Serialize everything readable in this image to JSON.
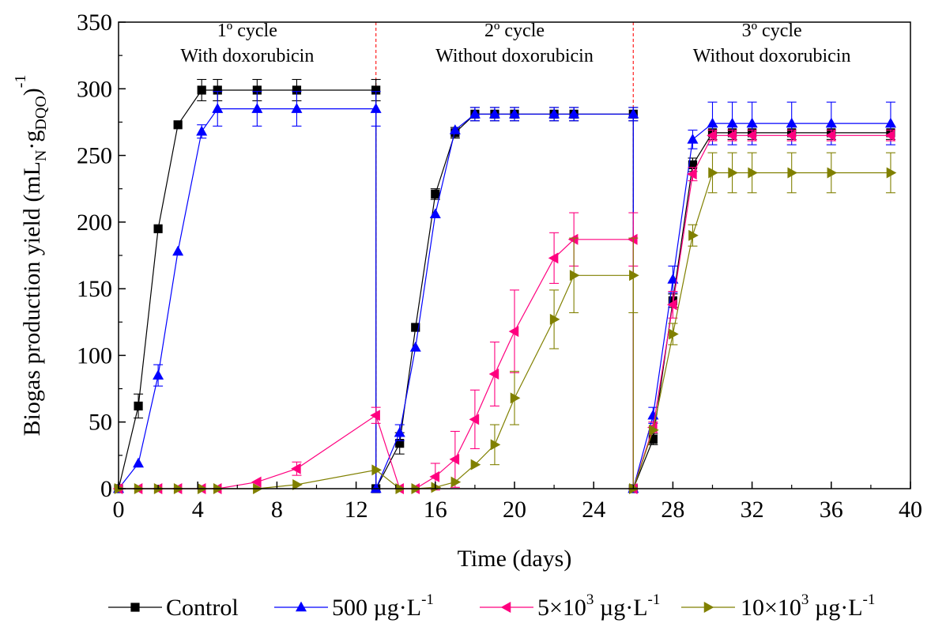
{
  "chart_data": {
    "type": "line",
    "xlabel": "Time (days)",
    "ylabel_main": "Biogas production yield (mL",
    "ylabel_sub_n": "N",
    "ylabel_dot": "·g",
    "ylabel_sub_dqo": "DQO",
    "ylabel_close": ")",
    "ylabel_sup": "-1",
    "xlim": [
      0,
      40
    ],
    "ylim": [
      0,
      350
    ],
    "xticks": [
      0,
      4,
      8,
      12,
      16,
      20,
      24,
      28,
      32,
      36,
      40
    ],
    "yticks": [
      0,
      50,
      100,
      150,
      200,
      250,
      300,
      350
    ],
    "cycle_dividers": [
      13,
      26
    ],
    "cycle_labels": [
      {
        "line1": "1º cycle",
        "line2": "With doxorubicin",
        "x": 6.5
      },
      {
        "line1": "2º cycle",
        "line2": "Without doxorubicin",
        "x": 20.0
      },
      {
        "line1": "3º cycle",
        "line2": "Without doxorubicin",
        "x": 33.0
      }
    ],
    "series": [
      {
        "name": "Control",
        "color": "#000000",
        "marker": "square",
        "points": [
          [
            0,
            0
          ],
          [
            1,
            62
          ],
          [
            2,
            195
          ],
          [
            3,
            273
          ],
          [
            4.2,
            299
          ],
          [
            5,
            299
          ],
          [
            7,
            299
          ],
          [
            9,
            299
          ],
          [
            13,
            299
          ],
          [
            13,
            0
          ],
          [
            14.2,
            34
          ],
          [
            15,
            121
          ],
          [
            16,
            221
          ],
          [
            17,
            267
          ],
          [
            18,
            281
          ],
          [
            19,
            281
          ],
          [
            20,
            281
          ],
          [
            22,
            281
          ],
          [
            23,
            281
          ],
          [
            26,
            281
          ],
          [
            26,
            0
          ],
          [
            27,
            37
          ],
          [
            28,
            141
          ],
          [
            29,
            243
          ],
          [
            30,
            267
          ],
          [
            31,
            267
          ],
          [
            32,
            267
          ],
          [
            34,
            267
          ],
          [
            36,
            267
          ],
          [
            39,
            267
          ]
        ],
        "errors": [
          [
            0,
            0
          ],
          [
            1,
            9
          ],
          [
            2,
            0
          ],
          [
            3,
            0
          ],
          [
            4.2,
            8
          ],
          [
            5,
            8
          ],
          [
            7,
            8
          ],
          [
            9,
            8
          ],
          [
            13,
            8
          ],
          [
            13,
            0
          ],
          [
            14.2,
            8
          ],
          [
            15,
            0
          ],
          [
            16,
            4
          ],
          [
            17,
            4
          ],
          [
            18,
            5
          ],
          [
            19,
            5
          ],
          [
            20,
            5
          ],
          [
            22,
            5
          ],
          [
            23,
            5
          ],
          [
            26,
            5
          ],
          [
            26,
            0
          ],
          [
            27,
            4
          ],
          [
            28,
            5
          ],
          [
            29,
            5
          ],
          [
            30,
            5
          ],
          [
            31,
            5
          ],
          [
            32,
            5
          ],
          [
            34,
            5
          ],
          [
            36,
            5
          ],
          [
            39,
            5
          ]
        ]
      },
      {
        "name": "500 µg·L",
        "name_sup": "-1",
        "color": "#0000ff",
        "marker": "triangle-up",
        "points": [
          [
            0,
            0
          ],
          [
            1,
            19
          ],
          [
            2,
            85
          ],
          [
            3,
            178
          ],
          [
            4.2,
            268
          ],
          [
            5,
            285
          ],
          [
            7,
            285
          ],
          [
            9,
            285
          ],
          [
            13,
            285
          ],
          [
            13,
            0
          ],
          [
            14.2,
            42
          ],
          [
            15,
            106
          ],
          [
            16,
            206
          ],
          [
            17,
            269
          ],
          [
            18,
            281
          ],
          [
            19,
            281
          ],
          [
            20,
            281
          ],
          [
            22,
            281
          ],
          [
            23,
            281
          ],
          [
            26,
            281
          ],
          [
            26,
            0
          ],
          [
            27,
            55
          ],
          [
            28,
            157
          ],
          [
            29,
            262
          ],
          [
            30,
            274
          ],
          [
            31,
            274
          ],
          [
            32,
            274
          ],
          [
            34,
            274
          ],
          [
            36,
            274
          ],
          [
            39,
            274
          ]
        ],
        "errors": [
          [
            0,
            0
          ],
          [
            1,
            0
          ],
          [
            2,
            8
          ],
          [
            3,
            0
          ],
          [
            4.2,
            5
          ],
          [
            5,
            13
          ],
          [
            7,
            13
          ],
          [
            9,
            13
          ],
          [
            13,
            13
          ],
          [
            13,
            0
          ],
          [
            14.2,
            6
          ],
          [
            15,
            0
          ],
          [
            16,
            0
          ],
          [
            17,
            0
          ],
          [
            18,
            5
          ],
          [
            19,
            5
          ],
          [
            20,
            5
          ],
          [
            22,
            5
          ],
          [
            23,
            5
          ],
          [
            26,
            5
          ],
          [
            26,
            0
          ],
          [
            27,
            6
          ],
          [
            28,
            10
          ],
          [
            29,
            7
          ],
          [
            30,
            16
          ],
          [
            31,
            16
          ],
          [
            32,
            16
          ],
          [
            34,
            16
          ],
          [
            36,
            16
          ],
          [
            39,
            16
          ]
        ]
      },
      {
        "name": "5×10",
        "name_sup": "3",
        "name_tail": " µg·L",
        "name_sup2": "-1",
        "color": "#ff007f",
        "marker": "triangle-left",
        "points": [
          [
            0,
            0
          ],
          [
            1,
            0
          ],
          [
            2,
            0
          ],
          [
            3,
            0
          ],
          [
            4.2,
            0
          ],
          [
            5,
            0
          ],
          [
            7,
            5
          ],
          [
            9,
            15
          ],
          [
            13,
            55
          ],
          [
            14.2,
            0
          ],
          [
            15,
            0
          ],
          [
            16,
            9
          ],
          [
            17,
            22
          ],
          [
            18,
            52
          ],
          [
            19,
            86
          ],
          [
            20,
            118
          ],
          [
            22,
            173
          ],
          [
            23,
            187
          ],
          [
            26,
            187
          ],
          [
            26,
            0
          ],
          [
            27,
            46
          ],
          [
            28,
            138
          ],
          [
            29,
            236
          ],
          [
            30,
            265
          ],
          [
            31,
            265
          ],
          [
            32,
            265
          ],
          [
            34,
            265
          ],
          [
            36,
            265
          ],
          [
            39,
            265
          ]
        ],
        "errors": [
          [
            0,
            0
          ],
          [
            1,
            0
          ],
          [
            2,
            0
          ],
          [
            3,
            0
          ],
          [
            4.2,
            0
          ],
          [
            5,
            0
          ],
          [
            7,
            0
          ],
          [
            9,
            5
          ],
          [
            13,
            6
          ],
          [
            14.2,
            0
          ],
          [
            15,
            0
          ],
          [
            16,
            10
          ],
          [
            17,
            21
          ],
          [
            18,
            22
          ],
          [
            19,
            24
          ],
          [
            20,
            31
          ],
          [
            22,
            19
          ],
          [
            23,
            20
          ],
          [
            26,
            20
          ],
          [
            26,
            0
          ],
          [
            27,
            4
          ],
          [
            28,
            10
          ],
          [
            29,
            5
          ],
          [
            30,
            4
          ],
          [
            31,
            4
          ],
          [
            32,
            4
          ],
          [
            34,
            4
          ],
          [
            36,
            4
          ],
          [
            39,
            4
          ]
        ]
      },
      {
        "name": "10×10",
        "name_sup": "3",
        "name_tail": " µg·L",
        "name_sup2": "-1",
        "color": "#808000",
        "marker": "triangle-right",
        "points": [
          [
            0,
            0
          ],
          [
            1,
            0
          ],
          [
            2,
            0
          ],
          [
            3,
            0
          ],
          [
            4.2,
            0
          ],
          [
            5,
            0
          ],
          [
            7,
            0
          ],
          [
            9,
            3
          ],
          [
            13,
            14
          ],
          [
            14.2,
            0
          ],
          [
            15,
            0
          ],
          [
            16,
            1
          ],
          [
            17,
            5
          ],
          [
            18,
            18
          ],
          [
            19,
            33
          ],
          [
            20,
            68
          ],
          [
            22,
            127
          ],
          [
            23,
            160
          ],
          [
            26,
            160
          ],
          [
            26,
            0
          ],
          [
            27,
            44
          ],
          [
            28,
            116
          ],
          [
            29,
            190
          ],
          [
            30,
            237
          ],
          [
            31,
            237
          ],
          [
            32,
            237
          ],
          [
            34,
            237
          ],
          [
            36,
            237
          ],
          [
            39,
            237
          ]
        ],
        "errors": [
          [
            0,
            0
          ],
          [
            1,
            0
          ],
          [
            2,
            0
          ],
          [
            3,
            0
          ],
          [
            4.2,
            0
          ],
          [
            5,
            0
          ],
          [
            7,
            0
          ],
          [
            9,
            0
          ],
          [
            13,
            0
          ],
          [
            14.2,
            0
          ],
          [
            15,
            0
          ],
          [
            16,
            0
          ],
          [
            17,
            0
          ],
          [
            18,
            0
          ],
          [
            19,
            15
          ],
          [
            20,
            20
          ],
          [
            22,
            22
          ],
          [
            23,
            28
          ],
          [
            26,
            28
          ],
          [
            26,
            0
          ],
          [
            27,
            0
          ],
          [
            28,
            8
          ],
          [
            29,
            8
          ],
          [
            30,
            15
          ],
          [
            31,
            15
          ],
          [
            32,
            15
          ],
          [
            34,
            15
          ],
          [
            36,
            15
          ],
          [
            39,
            15
          ]
        ]
      }
    ]
  }
}
